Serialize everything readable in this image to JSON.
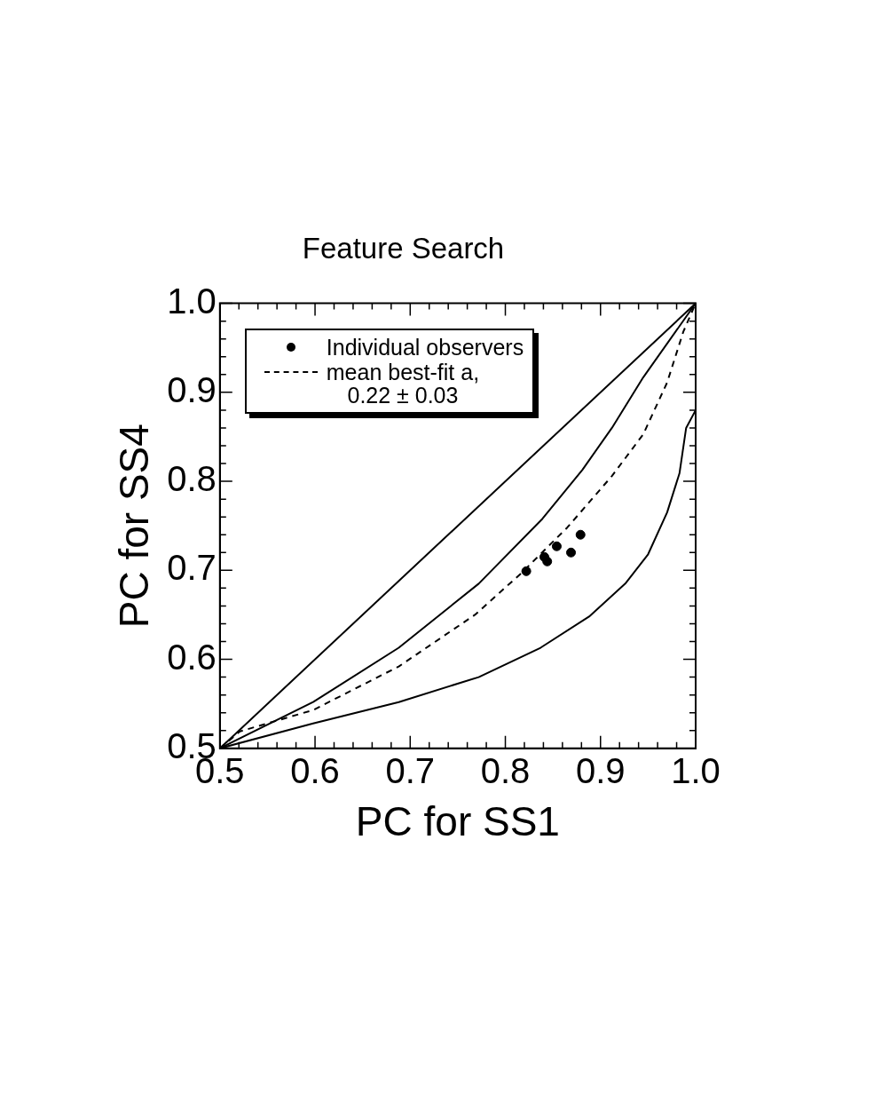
{
  "chart_data": {
    "type": "line",
    "title": "Feature Search",
    "xlabel": "PC for SS1",
    "ylabel": "PC for SS4",
    "xlim": [
      0.5,
      1.0
    ],
    "ylim": [
      0.5,
      1.0
    ],
    "xticks": [
      {
        "value": 0.5,
        "label": "0.5"
      },
      {
        "value": 0.6,
        "label": "0.6"
      },
      {
        "value": 0.7,
        "label": "0.7"
      },
      {
        "value": 0.8,
        "label": "0.8"
      },
      {
        "value": 0.9,
        "label": "0.9"
      },
      {
        "value": 1.0,
        "label": "1.0"
      }
    ],
    "yticks": [
      {
        "value": 0.5,
        "label": "0.5"
      },
      {
        "value": 0.6,
        "label": "0.6"
      },
      {
        "value": 0.7,
        "label": "0.7"
      },
      {
        "value": 0.8,
        "label": "0.8"
      },
      {
        "value": 0.9,
        "label": "0.9"
      },
      {
        "value": 1.0,
        "label": "1.0"
      }
    ],
    "grid": false,
    "legend": "top left",
    "series": [
      {
        "type": "scatter",
        "name": "Individual observers",
        "color": "#000000",
        "marker": "circle",
        "x": [
          0.822,
          0.841,
          0.844,
          0.854,
          0.869,
          0.879
        ],
        "values": [
          0.699,
          0.715,
          0.71,
          0.727,
          0.72,
          0.74
        ]
      },
      {
        "type": "line",
        "name": "mean best-fit a,\n0.22 ± 0.03",
        "color": "#000000",
        "line_style": "dashed",
        "marker": "none",
        "x": [
          0.5,
          0.521,
          0.598,
          0.688,
          0.768,
          0.817,
          0.865,
          0.912,
          0.945,
          0.97,
          0.987,
          1.0
        ],
        "values": [
          0.5,
          0.519,
          0.543,
          0.592,
          0.65,
          0.697,
          0.748,
          0.806,
          0.853,
          0.911,
          0.968,
          1.0
        ]
      },
      {
        "type": "line",
        "color": "#000000",
        "line_style": "solid",
        "marker": "none",
        "x": [
          0.5,
          1.0
        ],
        "values": [
          0.5,
          1.0
        ]
      },
      {
        "type": "line",
        "color": "#000000",
        "line_style": "solid",
        "marker": "none",
        "x": [
          0.5,
          0.598,
          0.688,
          0.772,
          0.839,
          0.881,
          0.912,
          0.945,
          1.0
        ],
        "values": [
          0.5,
          0.552,
          0.613,
          0.685,
          0.758,
          0.813,
          0.86,
          0.917,
          1.0
        ]
      },
      {
        "type": "line",
        "color": "#000000",
        "line_style": "solid",
        "marker": "none",
        "x": [
          0.5,
          0.598,
          0.688,
          0.772,
          0.837,
          0.888,
          0.926,
          0.95,
          0.97,
          0.983,
          0.99,
          1.0
        ],
        "values": [
          0.5,
          0.528,
          0.552,
          0.58,
          0.613,
          0.648,
          0.685,
          0.718,
          0.765,
          0.809,
          0.86,
          0.88
        ]
      }
    ]
  }
}
